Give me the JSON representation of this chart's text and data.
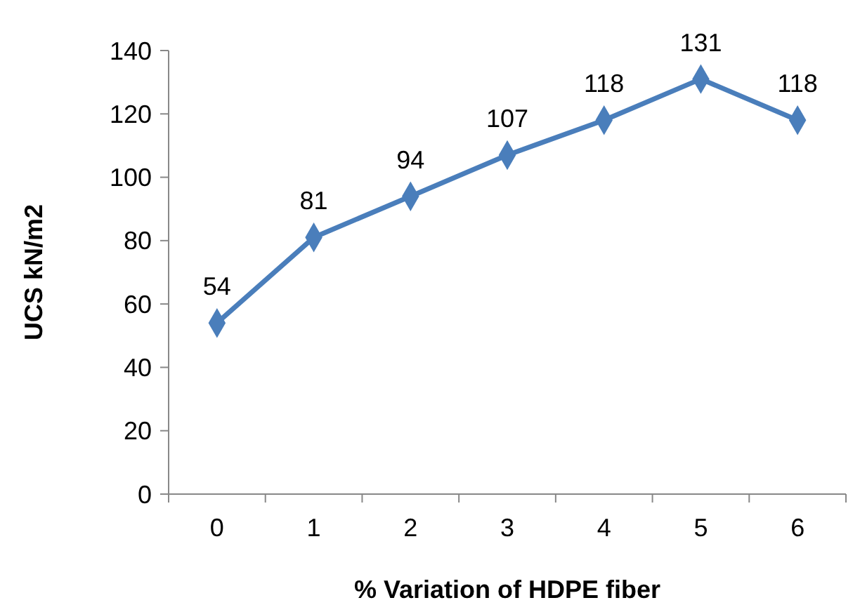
{
  "chart_data": {
    "type": "line",
    "xlabel": "% Variation of HDPE fiber",
    "ylabel": "UCS kN/m2",
    "categories": [
      "0",
      "1",
      "2",
      "3",
      "4",
      "5",
      "6"
    ],
    "series": [
      {
        "color": "#4a7ebb",
        "values": [
          54,
          81,
          94,
          107,
          118,
          131,
          118
        ]
      }
    ],
    "ylim": [
      0,
      140
    ],
    "yticks": [
      0,
      20,
      40,
      60,
      80,
      100,
      120,
      140
    ],
    "data_labels": true,
    "marker": "diamond",
    "line_style": "solid",
    "grid": false
  }
}
